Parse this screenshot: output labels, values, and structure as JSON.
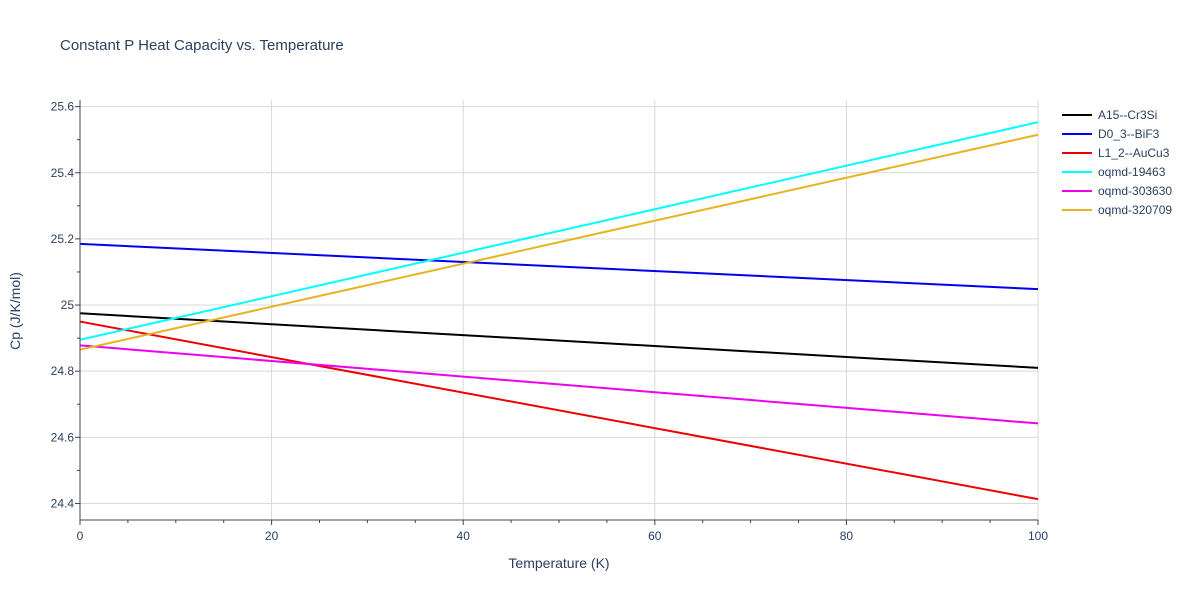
{
  "chart_data": {
    "type": "line",
    "title": "Constant P Heat Capacity vs. Temperature",
    "xlabel": "Temperature (K)",
    "ylabel": "Cp (J/K/mol)",
    "xlim": [
      0,
      100
    ],
    "ylim": [
      24.35,
      25.62
    ],
    "xticks": [
      0,
      20,
      40,
      60,
      80,
      100
    ],
    "xtick_labels": [
      "0",
      "20",
      "40",
      "60",
      "80",
      "100"
    ],
    "yticks": [
      24.4,
      24.6,
      24.8,
      25.0,
      25.2,
      25.4,
      25.6
    ],
    "ytick_labels": [
      "24.4",
      "24.6",
      "24.8",
      "25",
      "25.2",
      "25.4",
      "25.6"
    ],
    "grid": true,
    "legend_position": "top-right",
    "series": [
      {
        "name": "A15--Cr3Si",
        "color": "#000000",
        "x": [
          0,
          100
        ],
        "y": [
          24.975,
          24.81
        ]
      },
      {
        "name": "D0_3--BiF3",
        "color": "#0000ee",
        "x": [
          0,
          100
        ],
        "y": [
          25.185,
          25.048
        ]
      },
      {
        "name": "L1_2--AuCu3",
        "color": "#ee0000",
        "x": [
          0,
          100
        ],
        "y": [
          24.95,
          24.413
        ]
      },
      {
        "name": "oqmd-19463",
        "color": "#00ffff",
        "x": [
          0,
          100
        ],
        "y": [
          24.895,
          25.553
        ]
      },
      {
        "name": "oqmd-303630",
        "color": "#ee00ee",
        "x": [
          0,
          100
        ],
        "y": [
          24.878,
          24.642
        ]
      },
      {
        "name": "oqmd-320709",
        "color": "#e6b422",
        "x": [
          0,
          100
        ],
        "y": [
          24.865,
          25.515
        ]
      }
    ]
  }
}
